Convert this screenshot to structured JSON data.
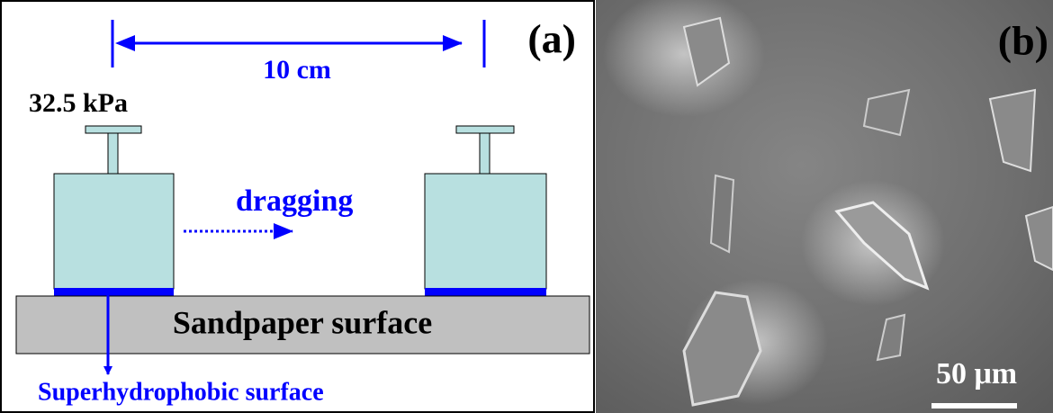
{
  "panel_a": {
    "label": "(a)",
    "distance": "10 cm",
    "pressure": "32.5 kPa",
    "motion": "dragging",
    "base": "Sandpaper surface",
    "sample": "Superhydrophobic surface"
  },
  "panel_b": {
    "label": "(b)",
    "scale_bar": "50 μm"
  }
}
